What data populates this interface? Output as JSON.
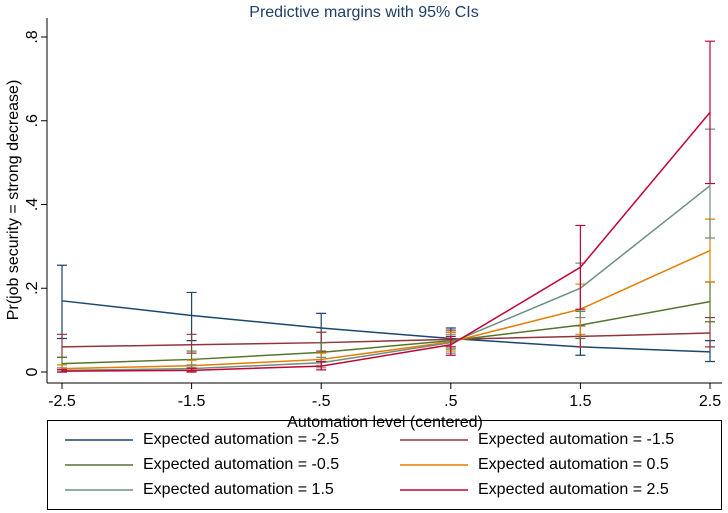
{
  "chart_data": {
    "type": "line",
    "title": "Predictive margins with 95% CIs",
    "x_label": "Automation level (centered)",
    "y_label": "Pr(job security = strong decrease)",
    "x": [
      -2.5,
      -1.5,
      -0.5,
      0.5,
      1.5,
      2.5
    ],
    "xlim": [
      -2.5,
      2.5
    ],
    "xticks": [
      -2.5,
      -1.5,
      {
        "value": -0.5,
        "label": "-.5"
      },
      {
        "value": 0.5,
        "label": ".5"
      },
      1.5,
      2.5
    ],
    "ylim": [
      0,
      0.8
    ],
    "yticks": [
      0,
      {
        "value": 0.2,
        "label": ".2"
      },
      {
        "value": 0.4,
        "label": ".4"
      },
      {
        "value": 0.6,
        "label": ".6"
      },
      {
        "value": 0.8,
        "label": ".8"
      }
    ],
    "legend_position": "bottom",
    "series": [
      {
        "name": "Expected automation = -2.5",
        "color": "#1a476f",
        "values": [
          0.17,
          0.135,
          0.105,
          0.08,
          0.06,
          0.048
        ],
        "lower": [
          0.08,
          0.075,
          0.07,
          0.06,
          0.04,
          0.025
        ],
        "upper": [
          0.255,
          0.19,
          0.14,
          0.105,
          0.085,
          0.075
        ]
      },
      {
        "name": "Expected automation = -1.5",
        "color": "#90353b",
        "values": [
          0.06,
          0.065,
          0.07,
          0.078,
          0.085,
          0.093
        ],
        "lower": [
          0.035,
          0.045,
          0.05,
          0.06,
          0.06,
          0.06
        ],
        "upper": [
          0.09,
          0.09,
          0.095,
          0.1,
          0.11,
          0.13
        ]
      },
      {
        "name": "Expected automation = -0.5",
        "color": "#55752f",
        "values": [
          0.02,
          0.03,
          0.047,
          0.075,
          0.112,
          0.168
        ],
        "lower": [
          0.005,
          0.01,
          0.025,
          0.055,
          0.08,
          0.12
        ],
        "upper": [
          0.035,
          0.05,
          0.07,
          0.095,
          0.145,
          0.215
        ]
      },
      {
        "name": "Expected automation = 0.5",
        "color": "#e37e00",
        "values": [
          0.008,
          0.015,
          0.03,
          0.072,
          0.15,
          0.29
        ],
        "lower": [
          0,
          0.002,
          0.015,
          0.05,
          0.09,
          0.215
        ],
        "upper": [
          0.017,
          0.028,
          0.045,
          0.095,
          0.21,
          0.365
        ]
      },
      {
        "name": "Expected automation = 1.5",
        "color": "#6e8e84",
        "values": [
          0.004,
          0.008,
          0.022,
          0.07,
          0.2,
          0.445
        ],
        "lower": [
          0,
          0,
          0.01,
          0.045,
          0.13,
          0.32
        ],
        "upper": [
          0.01,
          0.017,
          0.035,
          0.09,
          0.26,
          0.58
        ]
      },
      {
        "name": "Expected automation = 2.5",
        "color": "#c10534",
        "values": [
          0.002,
          0.004,
          0.014,
          0.065,
          0.25,
          0.62
        ],
        "lower": [
          0,
          0,
          0.005,
          0.04,
          0.15,
          0.45
        ],
        "upper": [
          0.006,
          0.009,
          0.025,
          0.085,
          0.35,
          0.79
        ]
      }
    ]
  }
}
